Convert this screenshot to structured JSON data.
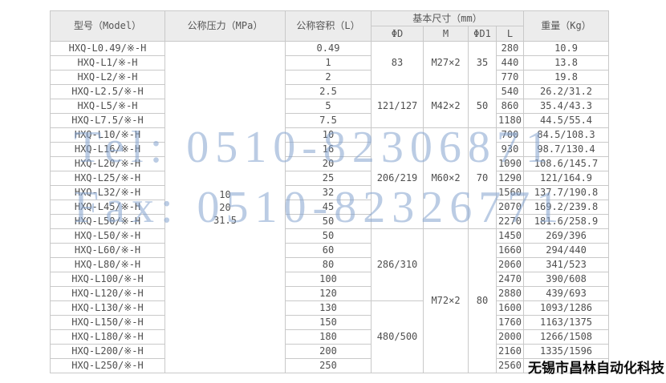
{
  "table": {
    "headers": {
      "model": "型号（Model）",
      "pressure": "公称压力（MPa）",
      "volume": "公称容积（L）",
      "dimensions": "基本尺寸（mm）",
      "phi_d": "ΦD",
      "m": "M",
      "phi_d1": "ΦD1",
      "l": "L",
      "weight": "重量（Kg）"
    },
    "pressure_lines": [
      "10",
      "20",
      "31.5"
    ],
    "rows": [
      {
        "model": "HXQ-L0.49/※-H",
        "volume": "0.49",
        "l": "280",
        "weight": "10.9"
      },
      {
        "model": "HXQ-L1/※-H",
        "volume": "1",
        "l": "440",
        "weight": "13.8"
      },
      {
        "model": "HXQ-L2/※-H",
        "volume": "2",
        "l": "770",
        "weight": "19.8"
      },
      {
        "model": "HXQ-L2.5/※-H",
        "volume": "2.5",
        "l": "540",
        "weight": "26.2/31.2"
      },
      {
        "model": "HXQ-L5/※-H",
        "volume": "5",
        "l": "860",
        "weight": "35.4/43.3"
      },
      {
        "model": "HXQ-L7.5/※-H",
        "volume": "7.5",
        "l": "1180",
        "weight": "44.5/55.4"
      },
      {
        "model": "HXQ-L10/※-H",
        "volume": "10",
        "l": "700",
        "weight": "84.5/108.3"
      },
      {
        "model": "HXQ-L16/※-H",
        "volume": "16",
        "l": "930",
        "weight": "98.7/130.4"
      },
      {
        "model": "HXQ-L20/※-H",
        "volume": "20",
        "l": "1090",
        "weight": "108.6/145.7"
      },
      {
        "model": "HXQ-L25/※-H",
        "volume": "25",
        "l": "1290",
        "weight": "121/164.9"
      },
      {
        "model": "HXQ-L32/※-H",
        "volume": "32",
        "l": "1560",
        "weight": "137.7/190.8"
      },
      {
        "model": "HXQ-L45/※-H",
        "volume": "45",
        "l": "2070",
        "weight": "169.2/239.8"
      },
      {
        "model": "HXQ-L50/※-H",
        "volume": "50",
        "l": "2270",
        "weight": "181.6/258.9"
      },
      {
        "model": "HXQ-L50/※-H",
        "volume": "50",
        "l": "1450",
        "weight": "269/396"
      },
      {
        "model": "HXQ-L60/※-H",
        "volume": "60",
        "l": "1660",
        "weight": "294/440"
      },
      {
        "model": "HXQ-L80/※-H",
        "volume": "80",
        "l": "2060",
        "weight": "341/523"
      },
      {
        "model": "HXQ-L100/※-H",
        "volume": "100",
        "l": "2470",
        "weight": "390/608"
      },
      {
        "model": "HXQ-L120/※-H",
        "volume": "120",
        "l": "2880",
        "weight": "439/693"
      },
      {
        "model": "HXQ-L130/※-H",
        "volume": "130",
        "l": "1600",
        "weight": "1093/1286"
      },
      {
        "model": "HXQ-L150/※-H",
        "volume": "150",
        "l": "1760",
        "weight": "1163/1375"
      },
      {
        "model": "HXQ-L180/※-H",
        "volume": "180",
        "l": "2000",
        "weight": "1266/1508"
      },
      {
        "model": "HXQ-L200/※-H",
        "volume": "200",
        "l": "2160",
        "weight": "1335/1596"
      },
      {
        "model": "HXQ-L250/※-H",
        "volume": "250",
        "l": "2560",
        "weight": ""
      }
    ],
    "phi_d_groups": [
      {
        "value": "83",
        "span": 3
      },
      {
        "value": "121/127",
        "span": 3
      },
      {
        "value": "206/219",
        "span": 7
      },
      {
        "value": "286/310",
        "span": 5
      },
      {
        "value": "480/500",
        "span": 5
      }
    ],
    "m_groups": [
      {
        "value": "M27×2",
        "span": 3
      },
      {
        "value": "M42×2",
        "span": 3
      },
      {
        "value": "M60×2",
        "span": 7
      },
      {
        "value": "M72×2",
        "span": 10
      }
    ],
    "phi_d1_groups": [
      {
        "value": "35",
        "span": 3
      },
      {
        "value": "50",
        "span": 3
      },
      {
        "value": "70",
        "span": 7
      },
      {
        "value": "80",
        "span": 10
      }
    ]
  },
  "watermarks": {
    "tel": "Tel: 0510-82306871",
    "fax": "Fax: 0510-82326771",
    "company": "无锡市昌林自动化科技"
  },
  "colors": {
    "header_bg": "#ececec",
    "border": "#c9c9c9",
    "text": "#4f4f4f",
    "watermark_blue": "#84a2ce",
    "watermark_company": "#0a0a0a"
  }
}
